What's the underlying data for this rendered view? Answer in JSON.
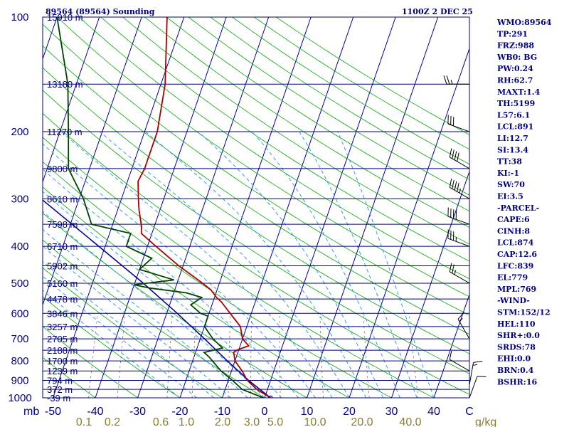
{
  "header": {
    "title": "89564 (89564) Sounding",
    "time": "1100Z  2 DEC 25"
  },
  "colors": {
    "frame": "#000080",
    "temp": "#aa0000",
    "dew": "#004400",
    "parcel": "#000099",
    "dry": "#00aa00",
    "moist": "#3399ff",
    "mix": "#777777",
    "isotherm": "#000099"
  },
  "chart_data": {
    "type": "skew-t",
    "title": "89564 (89564) Sounding",
    "pressure_axis_label": "mb",
    "mixing_ratio_unit": "g/kg",
    "pressure_ticks": [
      "100",
      "200",
      "300",
      "400",
      "500",
      "600",
      "700",
      "800",
      "900",
      "1000"
    ],
    "temp_ticks": [
      "-50",
      "-40",
      "-30",
      "-20",
      "-10",
      "0",
      "10",
      "20",
      "30",
      "40",
      "C"
    ],
    "mixing_ratio_ticks": [
      "0.1",
      "0.2",
      "0.6",
      "1.0",
      "2.0",
      "3.0",
      "5.0",
      "10.0",
      "20.0",
      "40.0"
    ],
    "height_levels": [
      {
        "p": 100,
        "label": "15910 m"
      },
      {
        "p": 150,
        "label": "13180 m"
      },
      {
        "p": 200,
        "label": "11270 m"
      },
      {
        "p": 250,
        "label": "9800 m"
      },
      {
        "p": 300,
        "label": "8610 m"
      },
      {
        "p": 350,
        "label": "7598 m"
      },
      {
        "p": 400,
        "label": "6710 m"
      },
      {
        "p": 450,
        "label": "5902 m"
      },
      {
        "p": 500,
        "label": "5160 m"
      },
      {
        "p": 550,
        "label": "4478 m"
      },
      {
        "p": 600,
        "label": "3846 m"
      },
      {
        "p": 650,
        "label": "3257 m"
      },
      {
        "p": 700,
        "label": "2705 m"
      },
      {
        "p": 750,
        "label": "2188 m"
      },
      {
        "p": 800,
        "label": "1700 m"
      },
      {
        "p": 850,
        "label": "1239 m"
      },
      {
        "p": 900,
        "label": "794 m"
      },
      {
        "p": 950,
        "label": "372 m"
      },
      {
        "p": 1000,
        "label": "-39 m"
      }
    ],
    "temperature_profile": [
      {
        "p": 1000,
        "t": 1.4
      },
      {
        "p": 950,
        "t": -2.5
      },
      {
        "p": 900,
        "t": -5.5
      },
      {
        "p": 850,
        "t": -7.5
      },
      {
        "p": 800,
        "t": -10.0
      },
      {
        "p": 760,
        "t": -11.0
      },
      {
        "p": 750,
        "t": -10.5
      },
      {
        "p": 730,
        "t": -8.0
      },
      {
        "p": 700,
        "t": -10.0
      },
      {
        "p": 650,
        "t": -11.5
      },
      {
        "p": 600,
        "t": -15.0
      },
      {
        "p": 560,
        "t": -18.0
      },
      {
        "p": 545,
        "t": -19.5
      },
      {
        "p": 520,
        "t": -21.5
      },
      {
        "p": 500,
        "t": -24.0
      },
      {
        "p": 450,
        "t": -31.0
      },
      {
        "p": 400,
        "t": -38.0
      },
      {
        "p": 370,
        "t": -42.5
      },
      {
        "p": 355,
        "t": -43.0
      },
      {
        "p": 320,
        "t": -45.0
      },
      {
        "p": 300,
        "t": -46.0
      },
      {
        "p": 270,
        "t": -47.5
      },
      {
        "p": 250,
        "t": -47.0
      },
      {
        "p": 200,
        "t": -47.0
      },
      {
        "p": 150,
        "t": -49.0
      },
      {
        "p": 100,
        "t": -54.0
      }
    ],
    "dewpoint_profile": [
      {
        "p": 1000,
        "td": -0.3
      },
      {
        "p": 950,
        "td": -6.0
      },
      {
        "p": 900,
        "td": -9.0
      },
      {
        "p": 850,
        "td": -12.5
      },
      {
        "p": 780,
        "td": -16.5
      },
      {
        "p": 760,
        "td": -18.0
      },
      {
        "p": 740,
        "td": -14.0
      },
      {
        "p": 700,
        "td": -17.0
      },
      {
        "p": 650,
        "td": -20.0
      },
      {
        "p": 610,
        "td": -20.0
      },
      {
        "p": 600,
        "td": -22.0
      },
      {
        "p": 570,
        "td": -25.0
      },
      {
        "p": 545,
        "td": -23.0
      },
      {
        "p": 530,
        "td": -27.0
      },
      {
        "p": 515,
        "td": -36.0
      },
      {
        "p": 505,
        "td": -40.0
      },
      {
        "p": 500,
        "td": -37.0
      },
      {
        "p": 490,
        "td": -31.0
      },
      {
        "p": 460,
        "td": -40.0
      },
      {
        "p": 430,
        "td": -38.0
      },
      {
        "p": 400,
        "td": -45.0
      },
      {
        "p": 370,
        "td": -45.0
      },
      {
        "p": 350,
        "td": -55.0
      },
      {
        "p": 300,
        "td": -59.0
      },
      {
        "p": 250,
        "td": -65.0
      },
      {
        "p": 200,
        "td": -68.0
      },
      {
        "p": 150,
        "td": -72.0
      },
      {
        "p": 100,
        "td": -80.0
      }
    ],
    "parcel_profile": [
      {
        "p": 1000,
        "t": 1.4
      },
      {
        "p": 900,
        "t": -5.2
      },
      {
        "p": 800,
        "t": -11.8
      },
      {
        "p": 700,
        "t": -19.0
      },
      {
        "p": 600,
        "t": -27.5
      },
      {
        "p": 500,
        "t": -38.0
      },
      {
        "p": 400,
        "t": -51.5
      },
      {
        "p": 300,
        "t": -69.0
      },
      {
        "p": 250,
        "t": -80.0
      },
      {
        "p": 200,
        "t": -92.0
      },
      {
        "p": 150,
        "t": -106.0
      },
      {
        "p": 120,
        "t": -116.0
      }
    ],
    "wind_barbs": [
      {
        "p": 1000,
        "dir": 20,
        "spd": 10
      },
      {
        "p": 925,
        "dir": 10,
        "spd": 15
      },
      {
        "p": 850,
        "dir": 300,
        "spd": 10
      },
      {
        "p": 700,
        "dir": 330,
        "spd": 15
      },
      {
        "p": 500,
        "dir": 300,
        "spd": 25
      },
      {
        "p": 400,
        "dir": 290,
        "spd": 35
      },
      {
        "p": 350,
        "dir": 290,
        "spd": 40
      },
      {
        "p": 300,
        "dir": 300,
        "spd": 45
      },
      {
        "p": 250,
        "dir": 300,
        "spd": 40
      },
      {
        "p": 200,
        "dir": 290,
        "spd": 30
      },
      {
        "p": 150,
        "dir": 270,
        "spd": 25
      }
    ]
  },
  "indices": [
    "WMO:89564",
    "TP:291",
    "FRZ:988",
    "WB0: BG",
    "PW:0.24",
    "RH:62.7",
    "MAXT:1.4",
    "TH:5199",
    "L57:6.1",
    "LCL:891",
    "LI:12.7",
    "SI:13.4",
    "TT:38",
    "KI:-1",
    "SW:70",
    "EI:3.5",
    "-PARCEL-",
    "CAPE:6",
    "CINH:8",
    "LCL:874",
    "CAP:12.6",
    "LFC:839",
    "EL:779",
    "MPL:769",
    "-WIND-",
    "STM:152/12",
    "HEL:110",
    "SHR+:0.0",
    "SRDS:78",
    "EHI:0.0",
    "BRN:0.4",
    "BSHR:16"
  ]
}
